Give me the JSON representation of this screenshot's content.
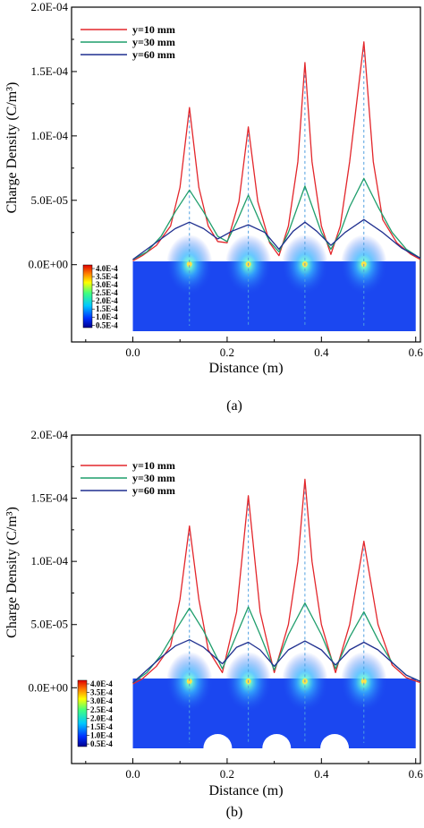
{
  "figure": {
    "colors": {
      "red": "#e3262b",
      "green": "#1f9e6c",
      "blue": "#1f2f8f",
      "guide": "#4f9fe0",
      "field": "#1b47f0"
    },
    "colorbar_labels": [
      "4.0E-4",
      "3.5E-4",
      "3.0E-4",
      "2.5E-4",
      "2.0E-4",
      "1.5E-4",
      "1.0E-4",
      "0.5E-4"
    ]
  },
  "chart_data": [
    {
      "type": "line",
      "caption": "(a)",
      "xlabel": "Distance (m)",
      "ylabel": "Charge Density (C/m³)",
      "xlim": [
        -0.13,
        0.61
      ],
      "ylim": [
        -6e-05,
        0.0002
      ],
      "xticks": [
        "0.0",
        "0.2",
        "0.4",
        "0.6"
      ],
      "yticks": [
        "0.0E+00",
        "5.0E-05",
        "1.0E-04",
        "1.5E-04",
        "2.0E-04"
      ],
      "grid": false,
      "legend_position": "top-left",
      "peaks": [
        0.12,
        0.245,
        0.365,
        0.49
      ],
      "series": [
        {
          "name": "y=10 mm",
          "color": "red",
          "x": [
            0.0,
            0.02,
            0.05,
            0.08,
            0.1,
            0.12,
            0.14,
            0.16,
            0.18,
            0.2,
            0.225,
            0.245,
            0.265,
            0.29,
            0.31,
            0.33,
            0.35,
            0.365,
            0.38,
            0.4,
            0.42,
            0.44,
            0.46,
            0.49,
            0.51,
            0.53,
            0.56,
            0.59,
            0.61
          ],
          "y": [
            3e-06,
            7e-06,
            1.5e-05,
            3e-05,
            6e-05,
            0.000122,
            6e-05,
            3e-05,
            1.8e-05,
            1.7e-05,
            4.9e-05,
            0.000107,
            4.9e-05,
            1.7e-05,
            7e-06,
            3e-05,
            8e-05,
            0.000157,
            8e-05,
            3e-05,
            8e-06,
            3e-05,
            8e-05,
            0.000173,
            8e-05,
            3.5e-05,
            1.7e-05,
            8e-06,
            4e-06
          ]
        },
        {
          "name": "y=30 mm",
          "color": "green",
          "x": [
            0.0,
            0.03,
            0.06,
            0.09,
            0.12,
            0.15,
            0.18,
            0.2,
            0.22,
            0.245,
            0.27,
            0.29,
            0.31,
            0.33,
            0.365,
            0.4,
            0.42,
            0.44,
            0.46,
            0.49,
            0.52,
            0.55,
            0.58,
            0.61
          ],
          "y": [
            4e-06,
            1e-05,
            2.2e-05,
            4.1e-05,
            5.8e-05,
            4.1e-05,
            2.2e-05,
            1.8e-05,
            3.3e-05,
            5.4e-05,
            3.3e-05,
            1.8e-05,
            1e-05,
            2.5e-05,
            6.1e-05,
            2.5e-05,
            1.2e-05,
            2.5e-05,
            4.5e-05,
            6.7e-05,
            4.5e-05,
            2.5e-05,
            1.2e-05,
            5e-06
          ]
        },
        {
          "name": "y=60 mm",
          "color": "blue",
          "x": [
            0.0,
            0.03,
            0.06,
            0.09,
            0.12,
            0.15,
            0.18,
            0.21,
            0.245,
            0.28,
            0.31,
            0.34,
            0.365,
            0.39,
            0.42,
            0.45,
            0.49,
            0.53,
            0.57,
            0.61
          ],
          "y": [
            4e-06,
            1.2e-05,
            2e-05,
            2.8e-05,
            3.3e-05,
            2.8e-05,
            2e-05,
            2.6e-05,
            3.1e-05,
            2.5e-05,
            1.2e-05,
            2.6e-05,
            3.3e-05,
            2.6e-05,
            1.5e-05,
            2.5e-05,
            3.5e-05,
            2.5e-05,
            1.3e-05,
            5e-06
          ]
        }
      ]
    },
    {
      "type": "line",
      "caption": "(b)",
      "xlabel": "Distance (m)",
      "ylabel": "Charge Density (C/m³)",
      "xlim": [
        -0.13,
        0.61
      ],
      "ylim": [
        -6e-05,
        0.0002
      ],
      "xticks": [
        "0.0",
        "0.2",
        "0.4",
        "0.6"
      ],
      "yticks": [
        "0.0E+00",
        "5.0E-05",
        "1.0E-04",
        "1.5E-04",
        "2.0E-04"
      ],
      "grid": false,
      "legend_position": "top-left",
      "peaks": [
        0.12,
        0.245,
        0.365,
        0.49
      ],
      "series": [
        {
          "name": "y=10 mm",
          "color": "red",
          "x": [
            0.0,
            0.02,
            0.05,
            0.08,
            0.1,
            0.12,
            0.14,
            0.16,
            0.19,
            0.22,
            0.245,
            0.27,
            0.3,
            0.33,
            0.35,
            0.365,
            0.38,
            0.4,
            0.43,
            0.46,
            0.49,
            0.52,
            0.55,
            0.58,
            0.61
          ],
          "y": [
            3e-06,
            7e-06,
            1.7e-05,
            3.3e-05,
            7e-05,
            0.000128,
            7e-05,
            3e-05,
            1.2e-05,
            6e-05,
            0.000152,
            6e-05,
            1.2e-05,
            5e-05,
            0.0001,
            0.000165,
            0.0001,
            5e-05,
            1.2e-05,
            5e-05,
            0.000116,
            5e-05,
            1.8e-05,
            8e-06,
            4e-06
          ]
        },
        {
          "name": "y=30 mm",
          "color": "green",
          "x": [
            0.0,
            0.03,
            0.06,
            0.09,
            0.12,
            0.15,
            0.19,
            0.22,
            0.245,
            0.27,
            0.3,
            0.33,
            0.365,
            0.4,
            0.43,
            0.46,
            0.49,
            0.52,
            0.55,
            0.58,
            0.61
          ],
          "y": [
            4e-06,
            1.2e-05,
            2.6e-05,
            4.5e-05,
            6.3e-05,
            4.5e-05,
            1.5e-05,
            4.2e-05,
            6.4e-05,
            4.2e-05,
            1.4e-05,
            4.2e-05,
            6.7e-05,
            4.2e-05,
            1.5e-05,
            4e-05,
            6e-05,
            3.8e-05,
            2e-05,
            1e-05,
            5e-06
          ]
        },
        {
          "name": "y=60 mm",
          "color": "blue",
          "x": [
            0.0,
            0.03,
            0.06,
            0.09,
            0.12,
            0.15,
            0.19,
            0.22,
            0.245,
            0.27,
            0.3,
            0.33,
            0.365,
            0.4,
            0.43,
            0.46,
            0.49,
            0.52,
            0.55,
            0.58,
            0.61
          ],
          "y": [
            4e-06,
            1.4e-05,
            2.4e-05,
            3.3e-05,
            3.8e-05,
            3.2e-05,
            1.9e-05,
            3.2e-05,
            3.6e-05,
            3e-05,
            1.7e-05,
            3e-05,
            3.7e-05,
            3e-05,
            1.8e-05,
            3e-05,
            3.6e-05,
            3e-05,
            2e-05,
            1e-05,
            5e-06
          ]
        }
      ]
    }
  ]
}
